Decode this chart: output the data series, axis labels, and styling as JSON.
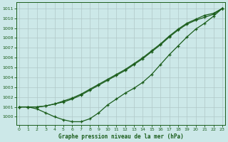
{
  "title": "Graphe pression niveau de la mer (hPa)",
  "bg_color": "#cce8e8",
  "grid_color": "#b0c8c8",
  "line_color": "#1a5c1a",
  "xlim": [
    -0.3,
    23.3
  ],
  "ylim": [
    999.2,
    1011.6
  ],
  "xticks": [
    0,
    1,
    2,
    3,
    4,
    5,
    6,
    7,
    8,
    9,
    10,
    11,
    12,
    13,
    14,
    15,
    16,
    17,
    18,
    19,
    20,
    21,
    22,
    23
  ],
  "yticks": [
    1000,
    1001,
    1002,
    1003,
    1004,
    1005,
    1006,
    1007,
    1008,
    1009,
    1010,
    1011
  ],
  "curve1": [
    1001.0,
    1001.0,
    1001.0,
    1001.1,
    1001.3,
    1001.6,
    1001.9,
    1002.3,
    1002.8,
    1003.3,
    1003.8,
    1004.3,
    1004.8,
    1005.4,
    1006.0,
    1006.7,
    1007.4,
    1008.2,
    1008.9,
    1009.5,
    1009.9,
    1010.3,
    1010.5,
    1011.0
  ],
  "curve2": [
    1001.0,
    1001.0,
    1001.0,
    1001.1,
    1001.3,
    1001.5,
    1001.8,
    1002.2,
    1002.7,
    1003.2,
    1003.7,
    1004.2,
    1004.7,
    1005.3,
    1005.9,
    1006.6,
    1007.3,
    1008.1,
    1008.8,
    1009.4,
    1009.8,
    1010.1,
    1010.4,
    1011.0
  ],
  "curve3": [
    1001.0,
    1001.0,
    1000.8,
    1000.4,
    1000.0,
    999.7,
    999.5,
    999.5,
    999.8,
    1000.4,
    1001.2,
    1001.8,
    1002.4,
    1002.9,
    1003.5,
    1004.3,
    1005.3,
    1006.3,
    1007.2,
    1008.1,
    1008.9,
    1009.5,
    1010.2,
    1011.0
  ]
}
